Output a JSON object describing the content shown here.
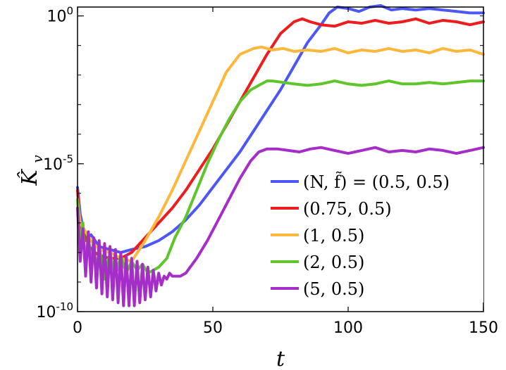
{
  "chart_data": {
    "type": "line",
    "title": "",
    "xlabel": "t",
    "ylabel": "K̂",
    "ylabel_sub": "v",
    "xlim": [
      0,
      150
    ],
    "ylim_log10": [
      -10,
      0.3
    ],
    "yscale": "log",
    "grid": false,
    "legend_position": "center-right",
    "x_ticks": [
      0,
      50,
      100,
      150
    ],
    "x_tick_labels": [
      "0",
      "50",
      "100",
      "150"
    ],
    "y_ticks": [
      {
        "base": "10",
        "exp": "0",
        "log10": 0
      },
      {
        "base": "10",
        "exp": "-5",
        "log10": -5
      },
      {
        "base": "10",
        "exp": "-10",
        "log10": -10
      }
    ],
    "series": [
      {
        "name": "(N, f̃) = (0.5, 0.5)",
        "color": "#4c57f5",
        "x": [
          0,
          1,
          3,
          5,
          8,
          12,
          16,
          20,
          25,
          30,
          35,
          40,
          45,
          50,
          55,
          60,
          65,
          70,
          75,
          80,
          85,
          90,
          93,
          96,
          100,
          104,
          108,
          112,
          116,
          120,
          125,
          130,
          135,
          140,
          145,
          150
        ],
        "y_log10": [
          -5.8,
          -6.7,
          -7.6,
          -7.4,
          -7.8,
          -7.9,
          -8.0,
          -7.9,
          -7.8,
          -7.6,
          -7.3,
          -6.9,
          -6.4,
          -5.8,
          -5.2,
          -4.6,
          -3.9,
          -3.2,
          -2.5,
          -1.7,
          -0.9,
          -0.3,
          0.1,
          0.3,
          0.25,
          0.15,
          0.3,
          0.35,
          0.2,
          0.25,
          0.2,
          0.25,
          0.2,
          0.15,
          0.1,
          0.1
        ]
      },
      {
        "name": "(0.75, 0.5)",
        "color": "#ee1c1c",
        "x": [
          0,
          1,
          3,
          5,
          8,
          12,
          16,
          20,
          25,
          30,
          35,
          40,
          45,
          50,
          55,
          60,
          65,
          70,
          75,
          80,
          83,
          86,
          90,
          95,
          100,
          105,
          110,
          115,
          120,
          125,
          130,
          135,
          140,
          145,
          150
        ],
        "y_log10": [
          -5.9,
          -7.1,
          -7.5,
          -7.9,
          -8.1,
          -8.2,
          -8.2,
          -8.0,
          -7.5,
          -7.0,
          -6.5,
          -5.9,
          -5.2,
          -4.5,
          -3.7,
          -2.9,
          -2.1,
          -1.3,
          -0.6,
          -0.2,
          -0.1,
          -0.2,
          -0.3,
          -0.35,
          -0.2,
          -0.25,
          -0.15,
          -0.25,
          -0.2,
          -0.1,
          -0.25,
          -0.15,
          -0.2,
          -0.3,
          -0.2
        ]
      },
      {
        "name": "(1, 0.5)",
        "color": "#fdb73c",
        "x": [
          0,
          1,
          3,
          5,
          8,
          12,
          16,
          20,
          25,
          30,
          35,
          40,
          45,
          50,
          55,
          60,
          65,
          68,
          72,
          76,
          80,
          85,
          90,
          95,
          100,
          105,
          110,
          115,
          120,
          125,
          130,
          135,
          140,
          145,
          150
        ],
        "y_log10": [
          -6.2,
          -7.0,
          -7.3,
          -7.6,
          -7.9,
          -8.0,
          -8.2,
          -8.3,
          -7.6,
          -6.8,
          -5.9,
          -4.9,
          -3.9,
          -2.9,
          -1.9,
          -1.3,
          -1.1,
          -1.05,
          -1.15,
          -1.1,
          -1.2,
          -1.15,
          -1.2,
          -1.1,
          -1.25,
          -1.15,
          -1.2,
          -1.1,
          -1.2,
          -1.15,
          -1.25,
          -1.1,
          -1.2,
          -1.15,
          -1.3
        ]
      },
      {
        "name": "(2, 0.5)",
        "color": "#5ec52a",
        "x": [
          0,
          1,
          2,
          3,
          4,
          5,
          6,
          7,
          8,
          10,
          12,
          14,
          16,
          18,
          20,
          22,
          24,
          26,
          28,
          30,
          33,
          36,
          40,
          44,
          48,
          52,
          56,
          60,
          64,
          68,
          70,
          72,
          76,
          80,
          85,
          90,
          95,
          100,
          105,
          110,
          115,
          120,
          125,
          130,
          135,
          140,
          145,
          150
        ],
        "y_log10": [
          -6.2,
          -7.8,
          -7.0,
          -8.5,
          -7.3,
          -8.6,
          -7.6,
          -8.8,
          -7.8,
          -8.9,
          -8.0,
          -8.8,
          -8.1,
          -8.7,
          -8.3,
          -8.6,
          -8.4,
          -8.7,
          -8.6,
          -8.5,
          -8.2,
          -7.5,
          -6.8,
          -5.9,
          -5.0,
          -4.2,
          -3.5,
          -2.9,
          -2.5,
          -2.3,
          -2.2,
          -2.2,
          -2.25,
          -2.3,
          -2.35,
          -2.3,
          -2.2,
          -2.3,
          -2.35,
          -2.3,
          -2.2,
          -2.3,
          -2.3,
          -2.25,
          -2.3,
          -2.25,
          -2.2,
          -2.2
        ]
      },
      {
        "name": "(5, 0.5)",
        "color": "#a62ec8",
        "x": [
          0,
          1,
          2,
          3,
          4,
          5,
          6,
          7,
          8,
          9,
          10,
          11,
          12,
          13,
          14,
          15,
          16,
          17,
          18,
          19,
          20,
          21,
          22,
          23,
          24,
          25,
          26,
          27,
          28,
          29,
          30,
          31,
          32,
          33,
          34,
          35,
          36,
          38,
          40,
          44,
          48,
          52,
          56,
          60,
          64,
          67,
          70,
          74,
          78,
          82,
          86,
          90,
          95,
          100,
          105,
          110,
          115,
          120,
          125,
          130,
          135,
          140,
          145,
          150
        ],
        "y_log10": [
          -6.5,
          -8.3,
          -7.2,
          -8.8,
          -7.3,
          -9.0,
          -7.5,
          -9.2,
          -7.6,
          -9.4,
          -7.7,
          -9.5,
          -7.8,
          -9.6,
          -7.9,
          -9.7,
          -8.0,
          -9.8,
          -8.1,
          -9.8,
          -8.2,
          -9.8,
          -8.3,
          -9.7,
          -8.4,
          -9.6,
          -8.5,
          -9.5,
          -8.6,
          -9.3,
          -8.7,
          -9.1,
          -8.8,
          -8.9,
          -8.7,
          -8.8,
          -8.8,
          -8.8,
          -8.7,
          -8.2,
          -7.6,
          -6.9,
          -6.2,
          -5.5,
          -4.9,
          -4.6,
          -4.5,
          -4.5,
          -4.55,
          -4.6,
          -4.5,
          -4.45,
          -4.55,
          -4.65,
          -4.55,
          -4.45,
          -4.6,
          -4.55,
          -4.6,
          -4.5,
          -4.55,
          -4.65,
          -4.55,
          -4.45
        ]
      }
    ]
  }
}
